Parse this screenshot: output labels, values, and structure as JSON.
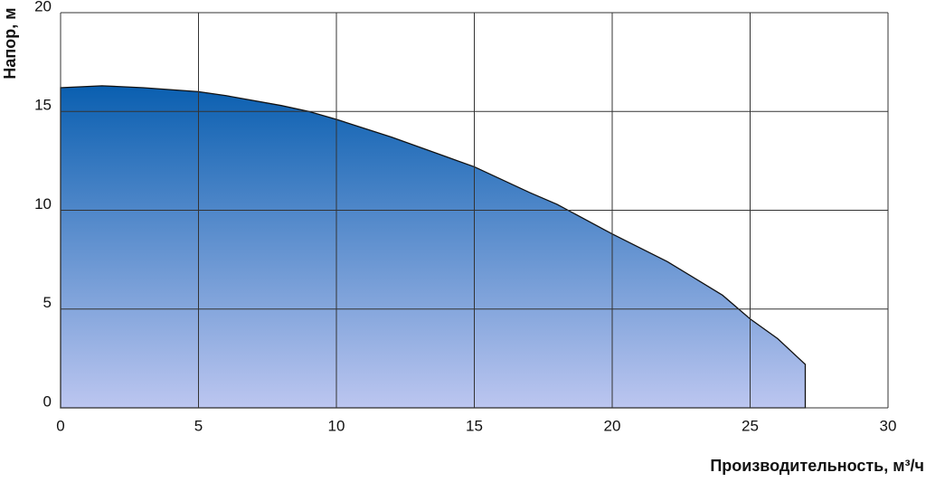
{
  "chart_data": {
    "type": "area",
    "x_label": "Производительность, м³/ч",
    "y_label": "Напор, м",
    "x": [
      0,
      1.5,
      3,
      5,
      6,
      8,
      9,
      10,
      12,
      14,
      15,
      17,
      18,
      20,
      22,
      24,
      25,
      26,
      27
    ],
    "series": [
      {
        "color": "#0a5fb0",
        "values": [
          16.2,
          16.3,
          16.2,
          16.0,
          15.8,
          15.3,
          15.0,
          14.6,
          13.7,
          12.7,
          12.2,
          10.9,
          10.3,
          8.8,
          7.4,
          5.7,
          4.5,
          3.5,
          2.2
        ]
      }
    ],
    "xlim": [
      0,
      30
    ],
    "ylim": [
      0,
      20
    ],
    "xticks": [
      0,
      5,
      10,
      15,
      20,
      25,
      30
    ],
    "yticks": [
      0,
      5,
      10,
      15,
      20
    ],
    "grid": true
  }
}
